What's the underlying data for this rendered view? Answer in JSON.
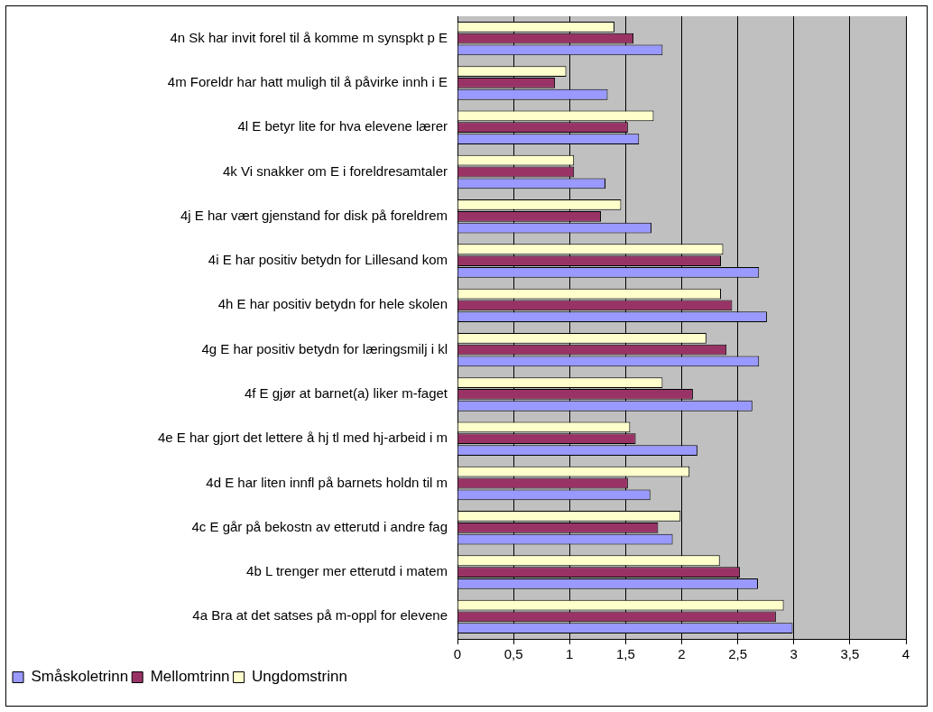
{
  "chart_data": {
    "type": "bar",
    "orientation": "horizontal",
    "categories": [
      "4n Sk har invit forel til å komme m synspkt p E",
      "4m Foreldr har hatt muligh til å påvirke innh i E",
      "4l E betyr lite for hva elevene lærer",
      "4k Vi snakker om E i foreldresamtaler",
      "4j E har vært gjenstand for disk på foreldrem",
      "4i E har positiv betydn for Lillesand kom",
      "4h E har positiv betydn for hele skolen",
      "4g E har positiv betydn for læringsmilj i kl",
      "4f E gjør at barnet(a) liker m-faget",
      "4e E har gjort det lettere å hj tl med hj-arbeid i m",
      "4d E har liten innfl på barnets holdn til m",
      "4c E går på bekostn av etterutd i andre fag",
      "4b L trenger mer etterutd i matem",
      "4a Bra at det satses på m-oppl for elevene"
    ],
    "series": [
      {
        "name": "Ungdomstrinn",
        "color": "#ffffcc",
        "values": [
          1.4,
          0.97,
          1.75,
          1.04,
          1.46,
          2.37,
          2.35,
          2.22,
          1.83,
          1.54,
          2.07,
          1.99,
          2.34,
          2.91
        ]
      },
      {
        "name": "Mellomtrinn",
        "color": "#993366",
        "values": [
          1.57,
          0.87,
          1.52,
          1.04,
          1.28,
          2.35,
          2.45,
          2.4,
          2.1,
          1.59,
          1.52,
          1.79,
          2.52,
          2.84
        ]
      },
      {
        "name": "Småskoletrinn",
        "color": "#9999ff",
        "values": [
          1.83,
          1.34,
          1.62,
          1.32,
          1.73,
          2.69,
          2.76,
          2.69,
          2.63,
          2.14,
          1.72,
          1.92,
          2.68,
          2.99
        ]
      }
    ],
    "xlim": [
      0,
      4
    ],
    "xticks": [
      0,
      {
        "value": 0.5,
        "label": "0,5"
      },
      1,
      {
        "value": 1.5,
        "label": "1,5"
      },
      2,
      {
        "value": 2.5,
        "label": "2,5"
      },
      3,
      {
        "value": 3.5,
        "label": "3,5"
      },
      4
    ],
    "grid": "x",
    "legend": "bottom left"
  }
}
